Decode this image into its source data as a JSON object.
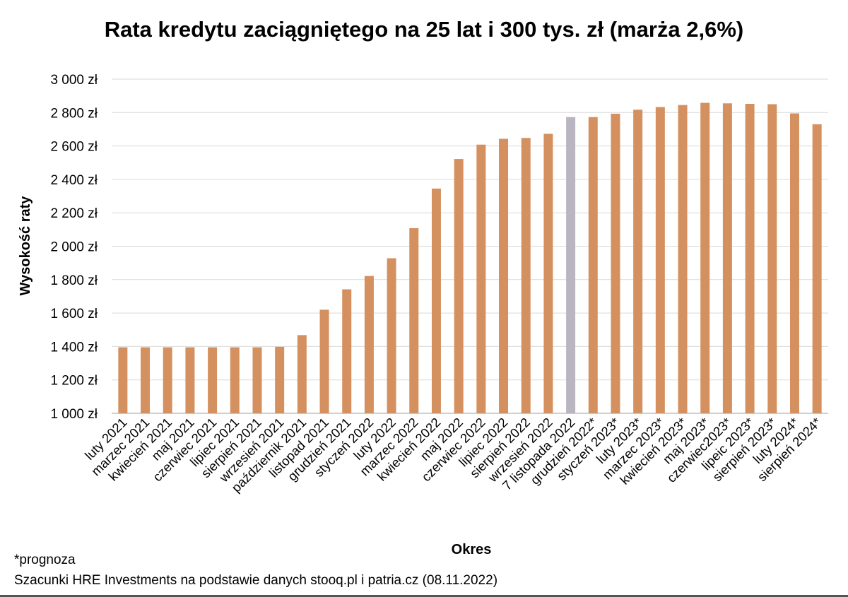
{
  "chart_data": {
    "type": "bar",
    "title": "Rata kredytu zaciągniętego na 25 lat i 300 tys. zł (marża 2,6%)",
    "xlabel": "Okres",
    "ylabel": "Wysokość raty",
    "ylim": [
      1000,
      3000
    ],
    "ytick_step": 200,
    "ytick_labels": [
      "1 000 zł",
      "1 200 zł",
      "1 400 zł",
      "1 600 zł",
      "1 800 zł",
      "2 000 zł",
      "2 200 zł",
      "2 400 zł",
      "2 600 zł",
      "2 800 zł",
      "3 000 zł"
    ],
    "grid": true,
    "categories": [
      "luty 2021",
      "marzec 2021",
      "kwiecień 2021",
      "maj 2021",
      "czerwiec 2021",
      "lipiec 2021",
      "sierpień 2021",
      "wrzesień 2021",
      "październik 2021",
      "listopad 2021",
      "grudzień 2021",
      "styczeń 2022",
      "luty 2022",
      "marzec 2022",
      "kwiecień 2022",
      "maj 2022",
      "czerwiec 2022",
      "lipiec 2022",
      "sierpień 2022",
      "wrzesień 2022",
      "7 listopada 2022",
      "grudzień 2022*",
      "styczeń 2023*",
      "luty 2023*",
      "marzec 2023*",
      "kwiecień 2023*",
      "maj 2023*",
      "czerwiec2023*",
      "lipeic 2023*",
      "sierpień 2023*",
      "luty 2024*",
      "sierpień 2024*"
    ],
    "values": [
      1395,
      1395,
      1395,
      1395,
      1395,
      1395,
      1395,
      1398,
      1468,
      1620,
      1742,
      1822,
      1928,
      2108,
      2345,
      2522,
      2608,
      2643,
      2648,
      2673,
      2773,
      2773,
      2793,
      2817,
      2833,
      2845,
      2858,
      2855,
      2852,
      2850,
      2795,
      2730
    ],
    "highlight_index": 20,
    "colors": {
      "bar": "#D4915F",
      "highlight": "#B9B6C2",
      "grid": "#D9D9D9",
      "axis": "#BFBFBF"
    }
  },
  "footnote": "*prognoza",
  "source": "Szacunki HRE Investments na podstawie danych stooq.pl i patria.cz (08.11.2022)"
}
